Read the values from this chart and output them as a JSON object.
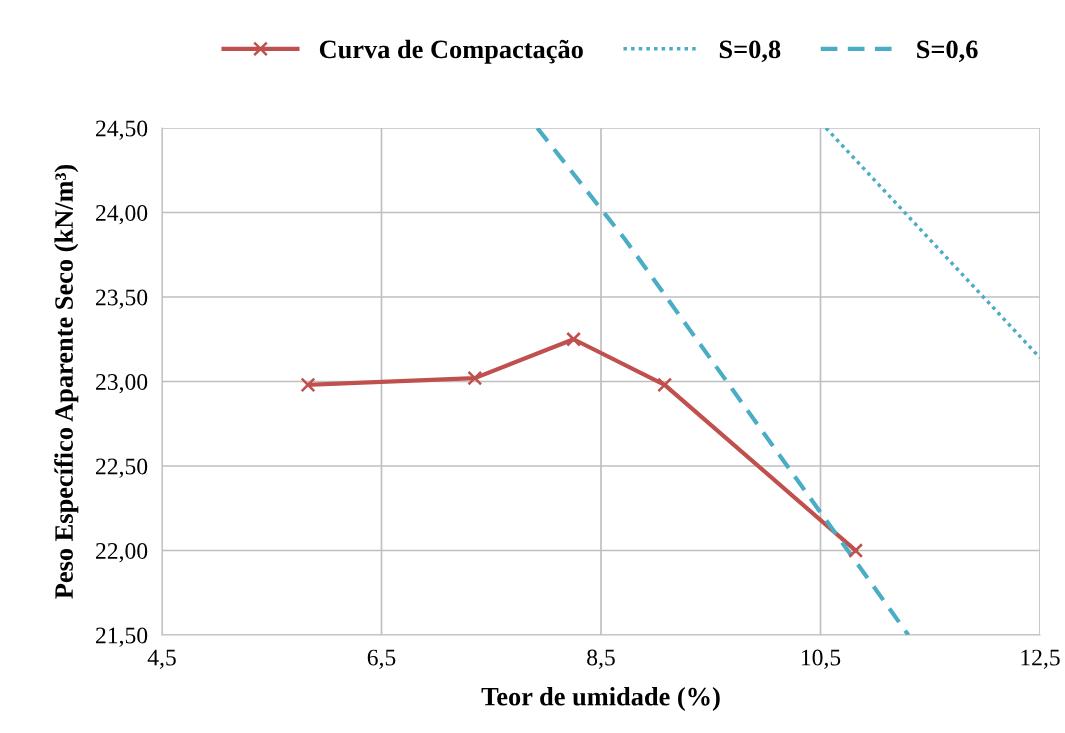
{
  "chart_data": {
    "type": "line",
    "xlabel": "Teor de umidade (%)",
    "ylabel": "Peso Específico Aparente Seco (kN/m³)",
    "series": [
      {
        "name": "Curva de Compactação",
        "color": "#c0504d",
        "marker": "cross",
        "line_style": "solid",
        "x": [
          5.83,
          7.35,
          8.25,
          9.08,
          10.82
        ],
        "values": [
          22.98,
          23.02,
          23.25,
          22.98,
          22.0
        ]
      },
      {
        "name": "S=0,8",
        "color": "#4bacc6",
        "marker": "none",
        "line_style": "dotted",
        "x": [
          10.55,
          12.5
        ],
        "values": [
          24.5,
          23.14
        ]
      },
      {
        "name": "S=0,6",
        "color": "#4bacc6",
        "marker": "none",
        "line_style": "dashed",
        "x": [
          7.92,
          8.72,
          11.3
        ],
        "values": [
          24.5,
          23.84,
          21.5
        ]
      }
    ],
    "xlim": [
      4.5,
      12.5
    ],
    "xticks": [
      {
        "value": 4.5,
        "label": "4,5"
      },
      {
        "value": 6.5,
        "label": "6,5"
      },
      {
        "value": 8.5,
        "label": "8,5"
      },
      {
        "value": 10.5,
        "label": "10,5"
      },
      {
        "value": 12.5,
        "label": "12,5"
      }
    ],
    "ylim": [
      21.5,
      24.5
    ],
    "yticks": [
      {
        "value": 21.5,
        "label": "21,50"
      },
      {
        "value": 22.0,
        "label": "22,00"
      },
      {
        "value": 22.5,
        "label": "22,50"
      },
      {
        "value": 23.0,
        "label": "23,00"
      },
      {
        "value": 23.5,
        "label": "23,50"
      },
      {
        "value": 24.0,
        "label": "24,00"
      },
      {
        "value": 24.5,
        "label": "24,50"
      }
    ],
    "grid": true,
    "legend": "top"
  }
}
